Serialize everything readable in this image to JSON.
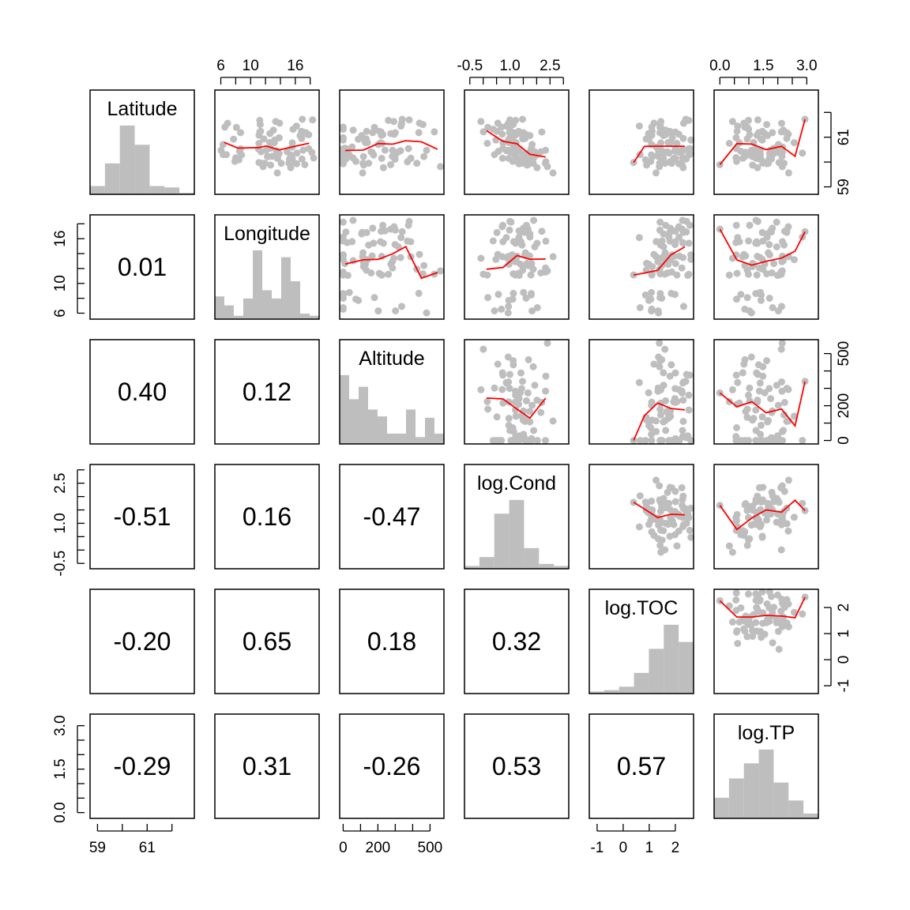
{
  "chart_data": {
    "type": "scatter-matrix",
    "variables": [
      "Latitude",
      "Longitude",
      "Altitude",
      "log.Cond",
      "log.TOC",
      "log.TP"
    ],
    "ranges": [
      [
        58.7,
        62.9
      ],
      [
        5.2,
        19.2
      ],
      [
        -20,
        580
      ],
      [
        -0.7,
        3.2
      ],
      [
        -1.3,
        2.7
      ],
      [
        -0.2,
        3.4
      ]
    ],
    "ticks": [
      [
        "59",
        "61"
      ],
      [
        "6",
        "10",
        "16"
      ],
      [
        "0",
        "200",
        "500"
      ],
      [
        "-0.5",
        "1.0",
        "2.5"
      ],
      [
        "-1",
        "0",
        "1",
        "2"
      ],
      [
        "0.0",
        "1.5",
        "3.0"
      ]
    ],
    "minor_ticks": [
      [
        59,
        60,
        61,
        62
      ],
      [
        6,
        8,
        10,
        12,
        14,
        16,
        18
      ],
      [
        0,
        100,
        200,
        300,
        400,
        500
      ],
      [
        -0.5,
        0,
        0.5,
        1.0,
        1.5,
        2.0,
        2.5,
        3.0
      ],
      [
        -1,
        0,
        1,
        2
      ],
      [
        0,
        0.5,
        1.0,
        1.5,
        2.0,
        2.5,
        3.0
      ]
    ],
    "correlations": [
      [
        "1",
        "0",
        "0.01"
      ],
      [
        "2",
        "0",
        "0.40"
      ],
      [
        "2",
        "1",
        "0.12"
      ],
      [
        "3",
        "0",
        "-0.51"
      ],
      [
        "3",
        "1",
        "0.16"
      ],
      [
        "3",
        "2",
        "-0.47"
      ],
      [
        "4",
        "0",
        "-0.20"
      ],
      [
        "4",
        "1",
        "0.65"
      ],
      [
        "4",
        "2",
        "0.18"
      ],
      [
        "4",
        "3",
        "0.32"
      ],
      [
        "5",
        "0",
        "-0.29"
      ],
      [
        "5",
        "1",
        "0.31"
      ],
      [
        "5",
        "2",
        "-0.26"
      ],
      [
        "5",
        "3",
        "0.53"
      ],
      [
        "5",
        "4",
        "0.57"
      ]
    ],
    "histograms": [
      [
        0.12,
        0.45,
        1.0,
        0.72,
        0.12,
        0.1,
        0.02
      ],
      [
        0.33,
        0.2,
        0.05,
        0.3,
        1.0,
        0.42,
        0.3,
        0.9,
        0.55,
        0.08,
        0.05
      ],
      [
        1.0,
        0.65,
        0.83,
        0.5,
        0.4,
        0.15,
        0.15,
        0.5,
        0.1,
        0.38,
        0.15
      ],
      [
        0.04,
        0.17,
        0.8,
        1.0,
        0.3,
        0.07,
        0.04
      ],
      [
        0.03,
        0.05,
        0.1,
        0.3,
        0.65,
        1.0,
        0.75
      ],
      [
        0.3,
        0.58,
        0.8,
        1.0,
        0.52,
        0.26,
        0.07
      ]
    ],
    "point_color": "#bebebe",
    "smooth_color": "#ff0000"
  }
}
